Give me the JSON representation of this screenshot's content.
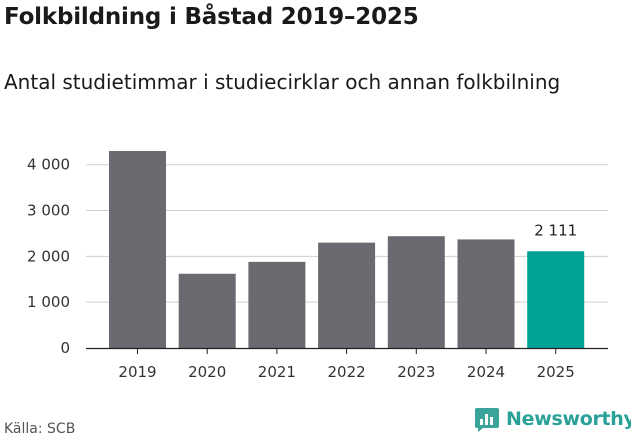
{
  "title": "Folkbildning i Båstad 2019–2025",
  "subtitle": "Antal studietimmar i studiecirklar och annan folkbilning",
  "source": "Källa: SCB",
  "brand": {
    "name": "Newsworthy",
    "icon": "newsworthy-logo-icon",
    "color": "#3aa39a"
  },
  "colors": {
    "bar": "#6b6a70",
    "highlight": "#00a295",
    "axis": "#222222",
    "grid": "#cfcfcf"
  },
  "chart_data": {
    "type": "bar",
    "title": "Folkbildning i Båstad 2019–2025",
    "subtitle": "Antal studietimmar i studiecirklar och annan folkbilning",
    "xlabel": "",
    "ylabel": "",
    "categories": [
      "2019",
      "2020",
      "2021",
      "2022",
      "2023",
      "2024",
      "2025"
    ],
    "values": [
      4300,
      1620,
      1880,
      2300,
      2440,
      2370,
      2111
    ],
    "highlight_index": 6,
    "data_labels": [
      {
        "index": 6,
        "text": "2 111"
      }
    ],
    "ylim": [
      0,
      4300
    ],
    "yticks": [
      0,
      1000,
      2000,
      3000,
      4000
    ],
    "ytick_labels": [
      "0",
      "1 000",
      "2 000",
      "3 000",
      "4 000"
    ],
    "grid": true
  }
}
